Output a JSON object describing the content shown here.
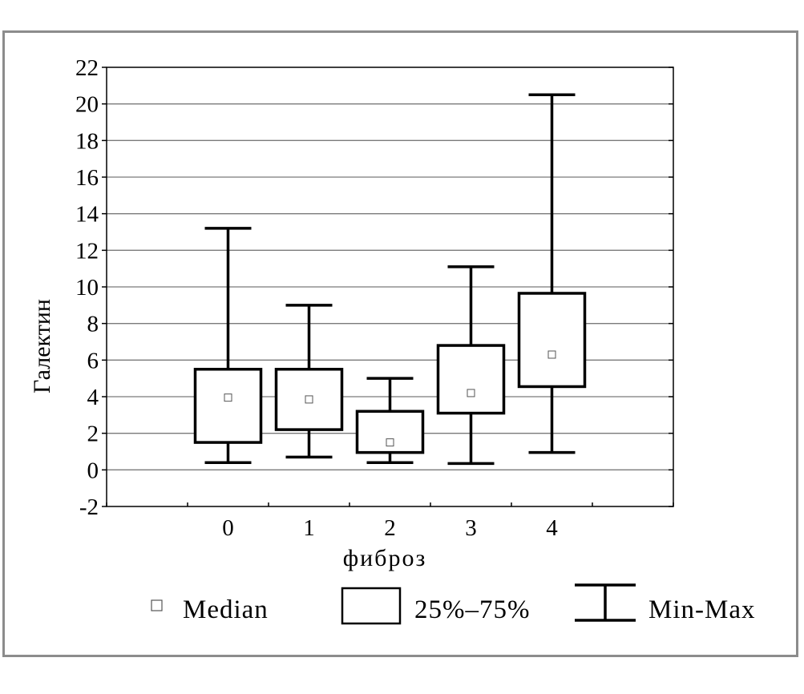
{
  "chart_data": {
    "type": "boxplot",
    "xlabel": "фиброз",
    "ylabel": "Галектин",
    "ylim": [
      -2,
      22
    ],
    "yticks": [
      "-2",
      "0",
      "2",
      "4",
      "6",
      "8",
      "10",
      "12",
      "14",
      "16",
      "18",
      "20",
      "22"
    ],
    "categories": [
      "0",
      "1",
      "2",
      "3",
      "4"
    ],
    "grid": true,
    "legend_position": "bottom",
    "series": [
      {
        "category": "0",
        "min": 0.4,
        "q1": 1.5,
        "median": 3.95,
        "q3": 5.5,
        "max": 13.2
      },
      {
        "category": "1",
        "min": 0.7,
        "q1": 2.2,
        "median": 3.85,
        "q3": 5.5,
        "max": 9.0
      },
      {
        "category": "2",
        "min": 0.4,
        "q1": 0.95,
        "median": 1.5,
        "q3": 3.2,
        "max": 5.0
      },
      {
        "category": "3",
        "min": 0.35,
        "q1": 3.1,
        "median": 4.2,
        "q3": 6.8,
        "max": 11.1
      },
      {
        "category": "4",
        "min": 0.95,
        "q1": 4.55,
        "median": 6.3,
        "q3": 9.65,
        "max": 20.5
      }
    ],
    "legend": {
      "median": "Median",
      "box": "25%–75%",
      "whisker": "Min-Max"
    }
  }
}
